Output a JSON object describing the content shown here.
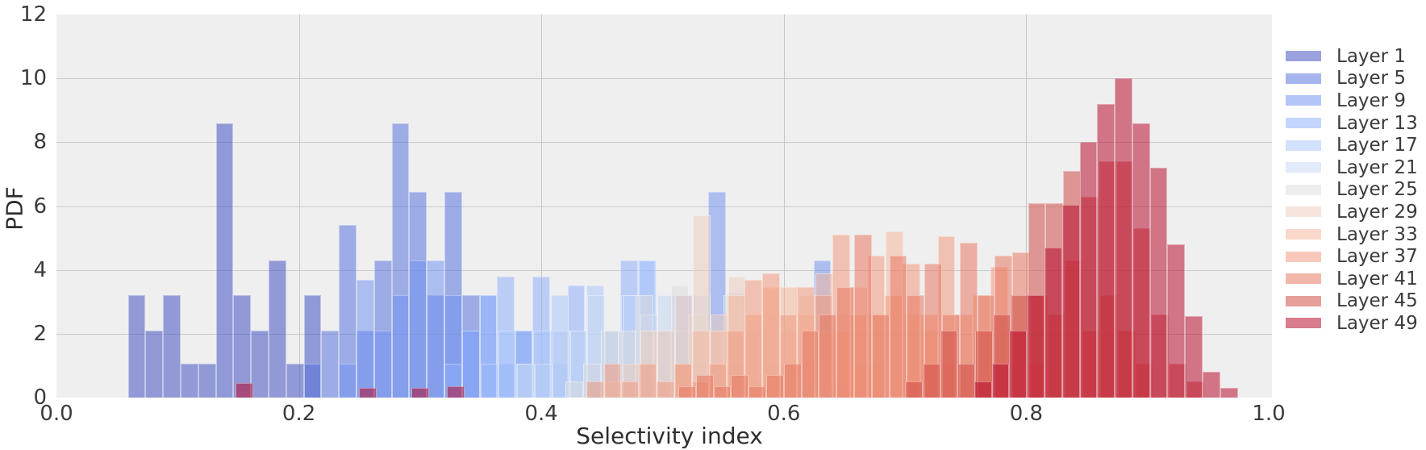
{
  "figure": {
    "background": "#ffffff",
    "plot_background": "#efefef",
    "grid_color": "#cbcbcb",
    "text_color": "#3b3b3b"
  },
  "chart_data": {
    "type": "histogram-overlay",
    "title": "",
    "xlabel": "Selectivity index",
    "ylabel": "PDF",
    "xlim": [
      0.0,
      1.0
    ],
    "ylim": [
      0,
      12
    ],
    "xticks": [
      0.0,
      0.2,
      0.4,
      0.6,
      0.8,
      1.0
    ],
    "xtick_labels": [
      "0.0",
      "0.2",
      "0.4",
      "0.6",
      "0.8",
      "1.0"
    ],
    "yticks": [
      0,
      2,
      4,
      6,
      8,
      10,
      12
    ],
    "ytick_labels": [
      "0",
      "2",
      "4",
      "6",
      "8",
      "10",
      "12"
    ],
    "grid": true,
    "legend_position": "right-outside",
    "bar_alpha": 0.52,
    "bin_width": 0.0145,
    "series": [
      {
        "name": "Layer 1",
        "color": "#3B4CC0",
        "start": 0.059,
        "values": [
          3.2,
          2.1,
          3.2,
          1.05,
          1.05,
          8.6,
          3.2,
          2.1,
          4.3,
          1.05,
          3.2
        ]
      },
      {
        "name": "Layer 5",
        "color": "#5470DD",
        "start": 0.204,
        "values": [
          1.05,
          2.1,
          5.4,
          2.1,
          4.3,
          8.6,
          6.45,
          3.2,
          6.45,
          3.2,
          1.05
        ]
      },
      {
        "name": "Layer 9",
        "color": "#7092F2",
        "start": 0.233,
        "values": [
          1.05,
          3.7,
          2.1,
          3.2,
          4.3,
          4.3,
          3.2,
          2.1,
          3.2,
          1.05,
          2.1,
          1.05,
          1.05,
          0,
          0.5,
          0,
          1.05,
          0.5,
          0,
          2.1,
          0.5,
          6.45,
          1.05,
          0.5,
          0,
          1.05,
          0.5,
          4.3
        ]
      },
      {
        "name": "Layer 13",
        "color": "#8CAEFC",
        "start": 0.32,
        "values": [
          1.05,
          2.1,
          3.2,
          3.8,
          2.1,
          3.8,
          2.1,
          3.5,
          1.05,
          2.1,
          4.3,
          4.3,
          2.1,
          3.2,
          1.05,
          2.1,
          1.05
        ]
      },
      {
        "name": "Layer 17",
        "color": "#A9C5FC",
        "start": 0.35,
        "values": [
          1.05,
          2.1,
          1.05,
          2.1,
          3.2,
          2.1,
          3.5,
          2.1,
          3.2,
          4.3,
          2.1,
          3.2,
          2.1,
          1.05,
          2.1,
          1.05
        ]
      },
      {
        "name": "Layer 21",
        "color": "#C5D6F1",
        "start": 0.38,
        "values": [
          1.05,
          1.05,
          2.1,
          2.1,
          3.2,
          2.1,
          3.2,
          2.6,
          3.2,
          2.1,
          3.2,
          2.1,
          3.3,
          2.1,
          1.05,
          1.05
        ]
      },
      {
        "name": "Layer 25",
        "color": "#DDDDDD",
        "start": 0.42,
        "values": [
          0.5,
          1.05,
          2.1,
          2.1,
          3.2,
          2.1,
          3.5,
          2.6,
          2.1,
          3.2,
          2.1,
          2.6,
          1.05,
          2.1,
          1.05,
          0.5
        ]
      },
      {
        "name": "Layer 29",
        "color": "#EECEBC",
        "start": 0.4525,
        "values": [
          0.5,
          1.05,
          2.1,
          2.1,
          3.2,
          5.7,
          2.6,
          3.8,
          2.6,
          3.4,
          2.1,
          3.2,
          2.1,
          2.6,
          1.05,
          1.05
        ]
      },
      {
        "name": "Layer 33",
        "color": "#F5B69C",
        "start": 0.51,
        "values": [
          1.05,
          2.1,
          2.1,
          3.2,
          2.6,
          3.45,
          3.45,
          2.6,
          3.9,
          2.1,
          3.45,
          2.6,
          5.2,
          2.6,
          2.1,
          1.05
        ]
      },
      {
        "name": "Layer 37",
        "color": "#F2987B",
        "start": 0.437,
        "values": [
          0.5,
          1.05,
          0.5,
          1.05,
          0.5,
          1.05,
          0.5,
          1.05,
          2.1,
          3.7,
          3.9,
          2.6,
          3.45,
          3.2,
          5.1,
          2.6,
          4.45,
          3.2,
          4.2,
          2.6,
          5.05,
          2.6,
          3.2,
          4.1,
          2.1,
          1.05
        ]
      },
      {
        "name": "Layer 41",
        "color": "#E6735C",
        "start": 0.513,
        "values": [
          0.35,
          0.7,
          0.35,
          0.7,
          0.35,
          0.7,
          1.05,
          2.1,
          2.6,
          3.45,
          5.1,
          2.6,
          4.45,
          3.2,
          4.2,
          2.6,
          4.85,
          3.2,
          4.45,
          4.55,
          3.2,
          2.6,
          4.3,
          2.1,
          3.2,
          2.1,
          1.05
        ]
      },
      {
        "name": "Layer 45",
        "color": "#D0453F",
        "start": 0.7,
        "values": [
          0.5,
          1.05,
          2.1,
          1.05,
          2.1,
          2.6,
          3.2,
          6.1,
          6.1,
          7.1,
          6.3,
          7.4,
          7.4,
          5.3,
          2.6,
          1.05,
          0.5
        ]
      },
      {
        "name": "Layer 49",
        "color": "#B40426",
        "start": 0.148,
        "values": [
          0.45,
          0,
          0,
          0,
          0,
          0,
          0,
          0.3,
          0,
          0,
          0.3,
          0,
          0.35,
          0,
          0,
          0,
          0,
          0,
          0,
          0,
          0,
          0,
          0,
          0,
          0,
          0,
          0,
          0,
          0,
          0,
          0,
          0,
          0,
          0,
          0,
          0,
          0,
          0,
          0,
          0,
          0,
          0,
          0.5,
          1.05,
          2.1,
          3.2,
          4.7,
          6.05,
          8.0,
          9.2,
          10.0,
          8.6,
          7.2,
          4.8,
          2.55,
          0.8,
          0.3
        ]
      }
    ]
  }
}
